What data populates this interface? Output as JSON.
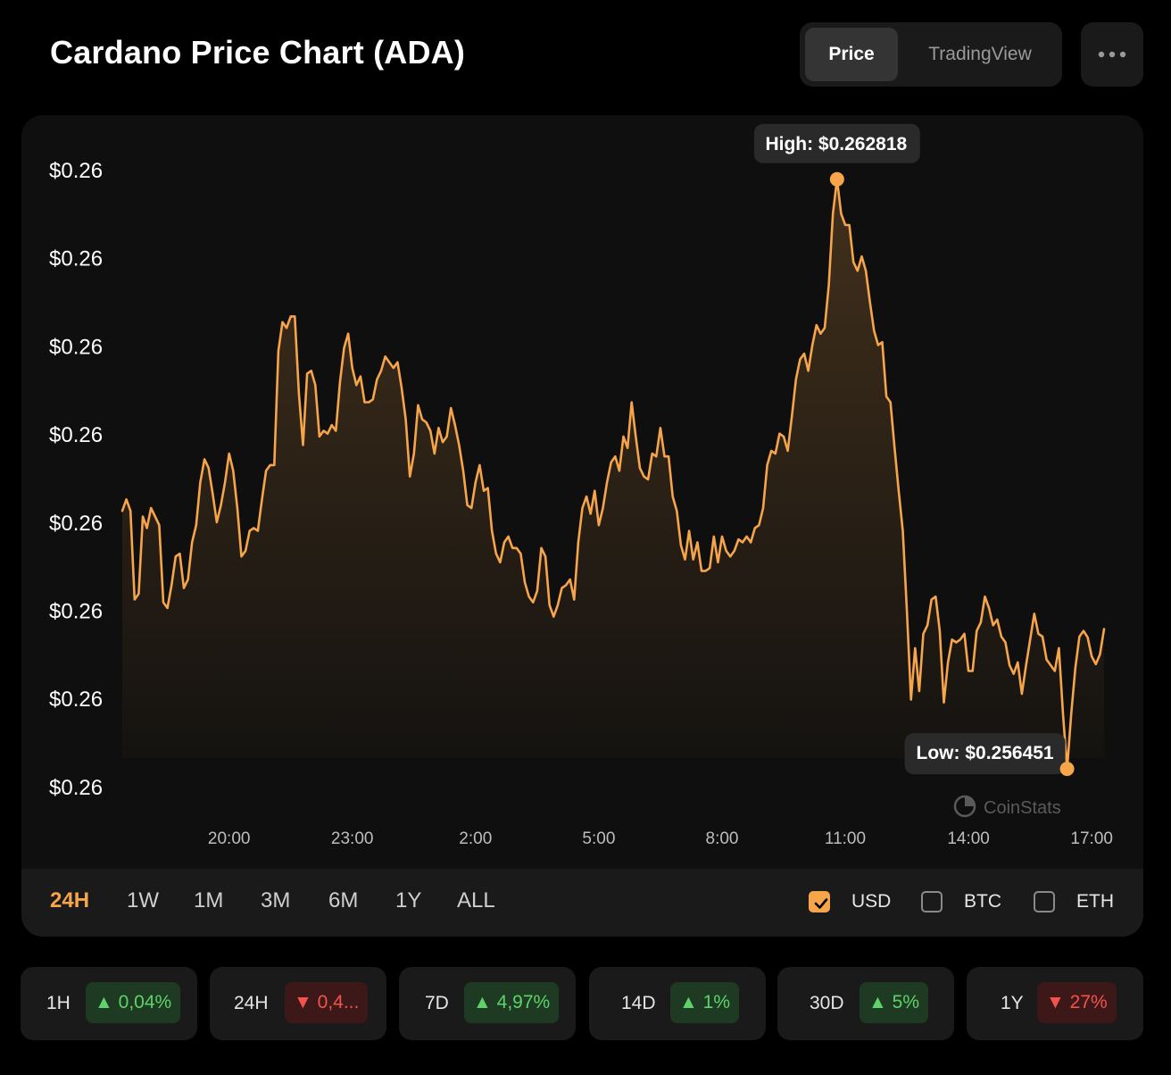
{
  "header": {
    "title": "Cardano Price Chart (ADA)",
    "tabs": [
      {
        "label": "Price",
        "active": true
      },
      {
        "label": "TradingView",
        "active": false
      }
    ],
    "more_icon": "ellipsis-icon"
  },
  "colors": {
    "accent": "#f7a54a",
    "up": "#5ed369",
    "down": "#f4524d",
    "card": "#0f0f0f",
    "page": "#000000"
  },
  "chart_data": {
    "type": "area",
    "x_tick_labels": [
      "20:00",
      "23:00",
      "2:00",
      "5:00",
      "8:00",
      "11:00",
      "14:00",
      "17:00"
    ],
    "y_tick_labels": [
      "$0.26",
      "$0.26",
      "$0.26",
      "$0.26",
      "$0.26",
      "$0.26",
      "$0.26",
      "$0.26"
    ],
    "high_label": "High: $0.262818",
    "low_label": "Low: $0.256451",
    "high": 0.262818,
    "low": 0.256451,
    "ylim": [
      0.25625,
      0.26325
    ],
    "x_range_hours": [
      17.4,
      41.3
    ],
    "grid": false,
    "watermark": "CoinStats",
    "series": [
      {
        "color": "#f7a54a",
        "values": [
          [
            17.4,
            0.259237
          ],
          [
            17.5,
            0.259361
          ],
          [
            17.6,
            0.259237
          ],
          [
            17.7,
            0.25828
          ],
          [
            17.8,
            0.258342
          ],
          [
            17.9,
            0.259176
          ],
          [
            18.0,
            0.259052
          ],
          [
            18.1,
            0.259268
          ],
          [
            18.2,
            0.259176
          ],
          [
            18.3,
            0.259083
          ],
          [
            18.4,
            0.25825
          ],
          [
            18.5,
            0.258188
          ],
          [
            18.6,
            0.258435
          ],
          [
            18.7,
            0.258744
          ],
          [
            18.8,
            0.258775
          ],
          [
            18.9,
            0.258404
          ],
          [
            19.0,
            0.258497
          ],
          [
            19.1,
            0.258898
          ],
          [
            19.2,
            0.259083
          ],
          [
            19.3,
            0.259546
          ],
          [
            19.4,
            0.259794
          ],
          [
            19.5,
            0.259701
          ],
          [
            19.6,
            0.259423
          ],
          [
            19.7,
            0.259114
          ],
          [
            19.8,
            0.259299
          ],
          [
            19.9,
            0.259546
          ],
          [
            20.0,
            0.259856
          ],
          [
            20.1,
            0.25967
          ],
          [
            20.2,
            0.259268
          ],
          [
            20.3,
            0.258744
          ],
          [
            20.4,
            0.258806
          ],
          [
            20.5,
            0.259021
          ],
          [
            20.6,
            0.259052
          ],
          [
            20.7,
            0.259021
          ],
          [
            20.8,
            0.259361
          ],
          [
            20.9,
            0.25967
          ],
          [
            21.0,
            0.259732
          ],
          [
            21.1,
            0.259732
          ],
          [
            21.2,
            0.260966
          ],
          [
            21.3,
            0.261275
          ],
          [
            21.4,
            0.261213
          ],
          [
            21.5,
            0.261337
          ],
          [
            21.6,
            0.261337
          ],
          [
            21.7,
            0.260503
          ],
          [
            21.8,
            0.259948
          ],
          [
            21.9,
            0.260719
          ],
          [
            22.0,
            0.26075
          ],
          [
            22.1,
            0.260596
          ],
          [
            22.2,
            0.26004
          ],
          [
            22.3,
            0.260102
          ],
          [
            22.4,
            0.260071
          ],
          [
            22.5,
            0.260164
          ],
          [
            22.6,
            0.260102
          ],
          [
            22.7,
            0.260627
          ],
          [
            22.8,
            0.260997
          ],
          [
            22.9,
            0.261151
          ],
          [
            23.0,
            0.260781
          ],
          [
            23.1,
            0.260596
          ],
          [
            23.2,
            0.260689
          ],
          [
            23.3,
            0.26041
          ],
          [
            23.4,
            0.26041
          ],
          [
            23.5,
            0.260441
          ],
          [
            23.6,
            0.260657
          ],
          [
            23.7,
            0.26075
          ],
          [
            23.8,
            0.260904
          ],
          [
            23.9,
            0.260842
          ],
          [
            24.0,
            0.260781
          ],
          [
            24.1,
            0.260842
          ],
          [
            24.2,
            0.260564
          ],
          [
            24.3,
            0.260225
          ],
          [
            24.4,
            0.259608
          ],
          [
            24.5,
            0.259856
          ],
          [
            24.6,
            0.260379
          ],
          [
            24.7,
            0.260225
          ],
          [
            24.8,
            0.260194
          ],
          [
            24.9,
            0.260102
          ],
          [
            25.0,
            0.259856
          ],
          [
            25.1,
            0.260133
          ],
          [
            25.2,
            0.259979
          ],
          [
            25.3,
            0.26004
          ],
          [
            25.4,
            0.260348
          ],
          [
            25.5,
            0.260164
          ],
          [
            25.6,
            0.259948
          ],
          [
            25.7,
            0.25967
          ],
          [
            25.8,
            0.259299
          ],
          [
            25.9,
            0.259268
          ],
          [
            26.0,
            0.259546
          ],
          [
            26.1,
            0.259732
          ],
          [
            26.2,
            0.259454
          ],
          [
            26.3,
            0.259484
          ],
          [
            26.4,
            0.259021
          ],
          [
            26.5,
            0.258775
          ],
          [
            26.6,
            0.258682
          ],
          [
            26.7,
            0.258898
          ],
          [
            26.8,
            0.25896
          ],
          [
            26.9,
            0.258836
          ],
          [
            27.0,
            0.258836
          ],
          [
            27.1,
            0.258775
          ],
          [
            27.2,
            0.258466
          ],
          [
            27.3,
            0.258311
          ],
          [
            27.4,
            0.25825
          ],
          [
            27.5,
            0.258373
          ],
          [
            27.6,
            0.258836
          ],
          [
            27.7,
            0.258744
          ],
          [
            27.8,
            0.258219
          ],
          [
            27.9,
            0.258095
          ],
          [
            28.0,
            0.258219
          ],
          [
            28.1,
            0.258404
          ],
          [
            28.2,
            0.258435
          ],
          [
            28.3,
            0.258497
          ],
          [
            28.4,
            0.25828
          ],
          [
            28.5,
            0.258898
          ],
          [
            28.6,
            0.259268
          ],
          [
            28.7,
            0.259392
          ],
          [
            28.8,
            0.259206
          ],
          [
            28.9,
            0.259454
          ],
          [
            29.0,
            0.259083
          ],
          [
            29.1,
            0.259268
          ],
          [
            29.2,
            0.259546
          ],
          [
            29.3,
            0.259763
          ],
          [
            29.4,
            0.259825
          ],
          [
            29.5,
            0.25967
          ],
          [
            29.6,
            0.26004
          ],
          [
            29.7,
            0.259917
          ],
          [
            29.8,
            0.26041
          ],
          [
            29.9,
            0.26004
          ],
          [
            30.0,
            0.259701
          ],
          [
            30.1,
            0.259608
          ],
          [
            30.2,
            0.259577
          ],
          [
            30.3,
            0.259856
          ],
          [
            30.4,
            0.259825
          ],
          [
            30.5,
            0.260133
          ],
          [
            30.6,
            0.259825
          ],
          [
            30.7,
            0.259825
          ],
          [
            30.8,
            0.259392
          ],
          [
            30.9,
            0.259237
          ],
          [
            31.0,
            0.258867
          ],
          [
            31.1,
            0.258713
          ],
          [
            31.2,
            0.259021
          ],
          [
            31.3,
            0.258713
          ],
          [
            31.4,
            0.258898
          ],
          [
            31.5,
            0.258589
          ],
          [
            31.6,
            0.258589
          ],
          [
            31.7,
            0.25862
          ],
          [
            31.8,
            0.25896
          ],
          [
            31.9,
            0.258682
          ],
          [
            32.0,
            0.25896
          ],
          [
            32.1,
            0.258806
          ],
          [
            32.2,
            0.258744
          ],
          [
            32.3,
            0.258806
          ],
          [
            32.4,
            0.258929
          ],
          [
            32.5,
            0.258898
          ],
          [
            32.6,
            0.25896
          ],
          [
            32.7,
            0.258898
          ],
          [
            32.8,
            0.259052
          ],
          [
            32.9,
            0.259083
          ],
          [
            33.0,
            0.259268
          ],
          [
            33.1,
            0.259732
          ],
          [
            33.2,
            0.259886
          ],
          [
            33.3,
            0.259856
          ],
          [
            33.4,
            0.260071
          ],
          [
            33.5,
            0.26004
          ],
          [
            33.6,
            0.259886
          ],
          [
            33.7,
            0.260256
          ],
          [
            33.8,
            0.260657
          ],
          [
            33.9,
            0.260873
          ],
          [
            34.0,
            0.260935
          ],
          [
            34.1,
            0.26075
          ],
          [
            34.2,
            0.261028
          ],
          [
            34.3,
            0.261244
          ],
          [
            34.4,
            0.261151
          ],
          [
            34.5,
            0.261213
          ],
          [
            34.6,
            0.261676
          ],
          [
            34.7,
            0.262448
          ],
          [
            34.8,
            0.262818
          ],
          [
            34.9,
            0.262448
          ],
          [
            35.0,
            0.262325
          ],
          [
            35.1,
            0.262324
          ],
          [
            35.2,
            0.261923
          ],
          [
            35.3,
            0.26183
          ],
          [
            35.4,
            0.261985
          ],
          [
            35.5,
            0.26183
          ],
          [
            35.6,
            0.261491
          ],
          [
            35.7,
            0.261182
          ],
          [
            35.8,
            0.261028
          ],
          [
            35.9,
            0.261059
          ],
          [
            36.0,
            0.260472
          ],
          [
            36.1,
            0.26041
          ],
          [
            36.2,
            0.259917
          ],
          [
            36.3,
            0.259454
          ],
          [
            36.4,
            0.259021
          ],
          [
            36.5,
            0.258157
          ],
          [
            36.6,
            0.257199
          ],
          [
            36.7,
            0.257755
          ],
          [
            36.8,
            0.257291
          ],
          [
            36.9,
            0.25791
          ],
          [
            37.0,
            0.258002
          ],
          [
            37.1,
            0.25828
          ],
          [
            37.2,
            0.258311
          ],
          [
            37.3,
            0.257941
          ],
          [
            37.4,
            0.257168
          ],
          [
            37.5,
            0.257601
          ],
          [
            37.6,
            0.257848
          ],
          [
            37.7,
            0.257817
          ],
          [
            37.8,
            0.257848
          ],
          [
            37.9,
            0.257909
          ],
          [
            38.0,
            0.257508
          ],
          [
            38.1,
            0.257508
          ],
          [
            38.2,
            0.257941
          ],
          [
            38.3,
            0.258033
          ],
          [
            38.4,
            0.258311
          ],
          [
            38.5,
            0.258188
          ],
          [
            38.6,
            0.258002
          ],
          [
            38.7,
            0.258064
          ],
          [
            38.8,
            0.257879
          ],
          [
            38.9,
            0.257817
          ],
          [
            39.0,
            0.25757
          ],
          [
            39.1,
            0.257477
          ],
          [
            39.2,
            0.257601
          ],
          [
            39.3,
            0.257261
          ],
          [
            39.4,
            0.25757
          ],
          [
            39.5,
            0.257848
          ],
          [
            39.6,
            0.258126
          ],
          [
            39.7,
            0.25791
          ],
          [
            39.8,
            0.257879
          ],
          [
            39.9,
            0.257632
          ],
          [
            40.0,
            0.25757
          ],
          [
            40.1,
            0.257508
          ],
          [
            40.2,
            0.257755
          ],
          [
            40.3,
            0.257044
          ],
          [
            40.4,
            0.256451
          ],
          [
            40.5,
            0.257044
          ],
          [
            40.6,
            0.257539
          ],
          [
            40.7,
            0.257879
          ],
          [
            40.8,
            0.257941
          ],
          [
            40.9,
            0.257872
          ],
          [
            41.0,
            0.257664
          ],
          [
            41.1,
            0.257582
          ],
          [
            41.2,
            0.257688
          ],
          [
            41.3,
            0.257961
          ]
        ]
      }
    ]
  },
  "ranges": [
    {
      "label": "24H",
      "active": true
    },
    {
      "label": "1W",
      "active": false
    },
    {
      "label": "1M",
      "active": false
    },
    {
      "label": "3M",
      "active": false
    },
    {
      "label": "6M",
      "active": false
    },
    {
      "label": "1Y",
      "active": false
    },
    {
      "label": "ALL",
      "active": false
    }
  ],
  "currencies": [
    {
      "label": "USD",
      "checked": true
    },
    {
      "label": "BTC",
      "checked": false
    },
    {
      "label": "ETH",
      "checked": false
    }
  ],
  "stats": [
    {
      "period": "1H",
      "change": "0,04%",
      "direction": "up"
    },
    {
      "period": "24H",
      "change": "0,4...",
      "direction": "down"
    },
    {
      "period": "7D",
      "change": "4,97%",
      "direction": "up"
    },
    {
      "period": "14D",
      "change": "1%",
      "direction": "up"
    },
    {
      "period": "30D",
      "change": "5%",
      "direction": "up"
    },
    {
      "period": "1Y",
      "change": "27%",
      "direction": "down"
    }
  ]
}
